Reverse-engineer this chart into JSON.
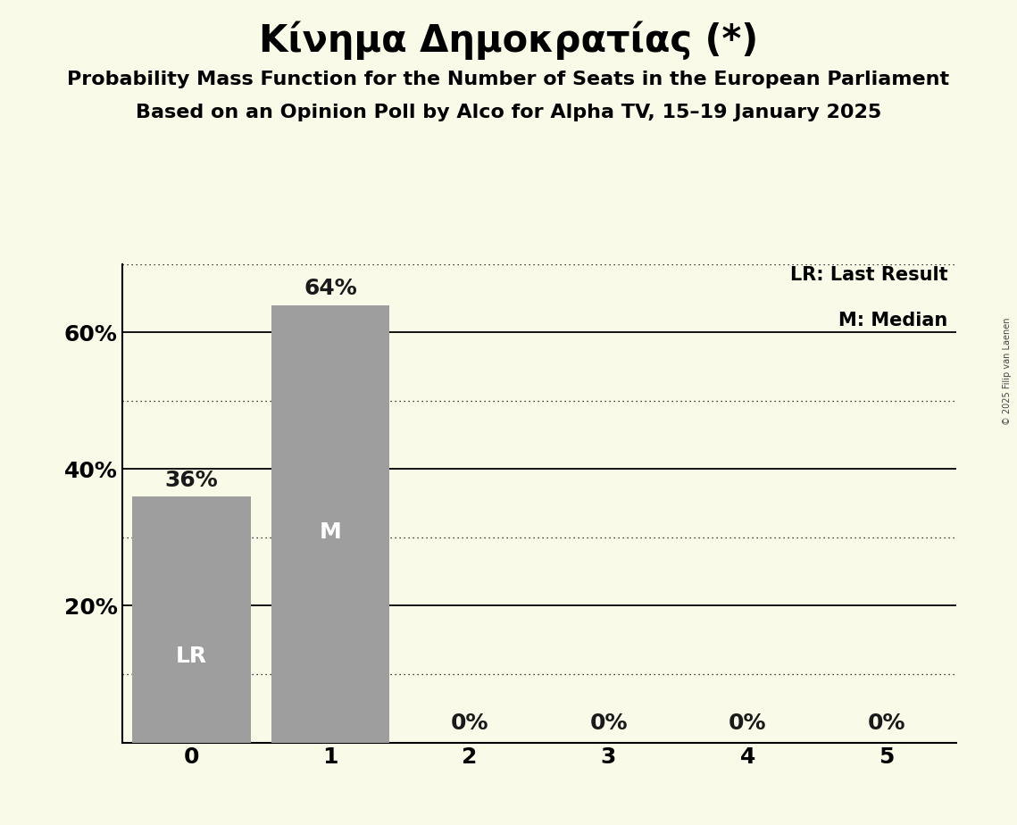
{
  "title": "Κίνημα Δημοκρατίας (*)",
  "subtitle1": "Probability Mass Function for the Number of Seats in the European Parliament",
  "subtitle2": "Based on an Opinion Poll by Alco for Alpha TV, 15–19 January 2025",
  "copyright": "© 2025 Filip van Laenen",
  "categories": [
    0,
    1,
    2,
    3,
    4,
    5
  ],
  "values": [
    0.36,
    0.64,
    0.0,
    0.0,
    0.0,
    0.0
  ],
  "bar_color": "#9e9e9e",
  "background_color": "#fafae8",
  "label_color_inside": "#ffffff",
  "label_color_outside": "#1a1a1a",
  "bar_labels": [
    "36%",
    "64%",
    "0%",
    "0%",
    "0%",
    "0%"
  ],
  "lr_bar": 0,
  "median_bar": 1,
  "lr_label": "LR",
  "median_label": "M",
  "legend_lr": "LR: Last Result",
  "legend_m": "M: Median",
  "ylim": [
    0,
    0.7
  ],
  "yticks": [
    0.0,
    0.2,
    0.4,
    0.6
  ],
  "ytick_labels": [
    "",
    "20%",
    "40%",
    "60%"
  ],
  "solid_grid_lines": [
    0.2,
    0.4,
    0.6
  ],
  "dotted_grid_lines": [
    0.1,
    0.3,
    0.5,
    0.7
  ],
  "title_fontsize": 30,
  "subtitle_fontsize": 16,
  "label_fontsize": 18,
  "tick_fontsize": 18,
  "legend_fontsize": 15,
  "copyright_fontsize": 7
}
